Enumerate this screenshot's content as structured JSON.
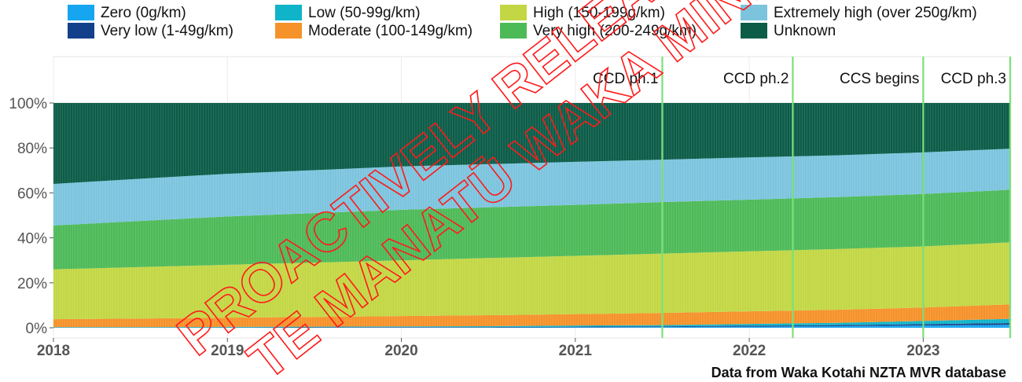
{
  "colors": {
    "zero": "#16a6f0",
    "very_low": "#12408a",
    "low": "#0fb4c8",
    "moderate": "#f5922a",
    "high": "#c3d744",
    "very_high": "#4dba58",
    "extremely_high": "#7cc4de",
    "unknown": "#0c5c48",
    "event_line": "#7be07a",
    "watermark": "#ff1a1a"
  },
  "legend": [
    {
      "key": "zero",
      "label": "Zero (0g/km)"
    },
    {
      "key": "very_low",
      "label": "Very low (1-49g/km)"
    },
    {
      "key": "low",
      "label": "Low (50-99g/km)"
    },
    {
      "key": "moderate",
      "label": "Moderate (100-149g/km)"
    },
    {
      "key": "high",
      "label": "High (150-199g/km)"
    },
    {
      "key": "very_high",
      "label": "Very high (200-249g/km)"
    },
    {
      "key": "extremely_high",
      "label": "Extremely high (over 250g/km)"
    },
    {
      "key": "unknown",
      "label": "Unknown"
    }
  ],
  "chart_data": {
    "type": "bar",
    "stacked": true,
    "title": "",
    "xlabel": "",
    "ylabel": "",
    "ylim": [
      0,
      100
    ],
    "yticks": [
      0,
      20,
      40,
      60,
      80,
      100
    ],
    "ytick_labels": [
      "0%",
      "20%",
      "40%",
      "60%",
      "80%",
      "100%"
    ],
    "xlim": [
      2018.0,
      2023.5
    ],
    "xticks": [
      2018,
      2019,
      2020,
      2021,
      2022,
      2023
    ],
    "xtick_labels": [
      "2018",
      "2019",
      "2020",
      "2021",
      "2022",
      "2023"
    ],
    "grid": true,
    "legend_position": "top",
    "x": [
      2018.0,
      2018.5,
      2019.0,
      2019.5,
      2020.0,
      2020.5,
      2021.0,
      2021.5,
      2022.0,
      2022.5,
      2023.0,
      2023.5
    ],
    "series": [
      {
        "key": "zero",
        "name": "Zero (0g/km)",
        "values": [
          0.0,
          0.0,
          0.0,
          0.0,
          0.1,
          0.1,
          0.2,
          0.3,
          0.5,
          0.7,
          1.0,
          1.3
        ]
      },
      {
        "key": "very_low",
        "name": "Very low (1-49g/km)",
        "values": [
          0.1,
          0.1,
          0.1,
          0.2,
          0.2,
          0.2,
          0.3,
          0.3,
          0.4,
          0.5,
          0.6,
          0.8
        ]
      },
      {
        "key": "low",
        "name": "Low (50-99g/km)",
        "values": [
          0.2,
          0.2,
          0.3,
          0.3,
          0.3,
          0.4,
          0.5,
          0.6,
          0.8,
          1.0,
          1.4,
          1.9
        ]
      },
      {
        "key": "moderate",
        "name": "Moderate (100-149g/km)",
        "values": [
          3.5,
          3.8,
          4.1,
          4.3,
          4.6,
          4.9,
          5.1,
          5.4,
          5.6,
          5.8,
          6.0,
          6.4
        ]
      },
      {
        "key": "high",
        "name": "High (150-199g/km)",
        "values": [
          22.2,
          22.9,
          23.5,
          24.2,
          24.8,
          25.4,
          25.9,
          26.4,
          26.7,
          27.0,
          27.2,
          27.6
        ]
      },
      {
        "key": "very_high",
        "name": "Very high (200-249g/km)",
        "values": [
          19.5,
          20.5,
          21.5,
          22.0,
          22.5,
          22.6,
          22.7,
          22.9,
          23.0,
          23.1,
          23.3,
          23.4
        ]
      },
      {
        "key": "extremely_high",
        "name": "Extremely high (over 250g/km)",
        "values": [
          18.5,
          18.8,
          19.0,
          19.1,
          19.3,
          19.2,
          19.1,
          18.9,
          18.8,
          18.6,
          18.5,
          18.3
        ]
      },
      {
        "key": "unknown",
        "name": "Unknown",
        "values": [
          36.0,
          33.7,
          31.5,
          29.9,
          28.2,
          27.2,
          26.2,
          25.2,
          24.2,
          23.3,
          22.0,
          20.3
        ]
      }
    ],
    "annotations": [
      {
        "x": 2021.5,
        "label": "CCD ph.1"
      },
      {
        "x": 2022.25,
        "label": "CCD ph.2"
      },
      {
        "x": 2023.0,
        "label": "CCS begins"
      },
      {
        "x": 2023.5,
        "label": "CCD ph.3"
      }
    ],
    "caption": "Data from Waka Kotahi NZTA MVR database"
  },
  "watermark": {
    "line1": "PROACTIVELY RELEASED BY",
    "line2": "TE MANATŪ WAKA MINISTRY OF"
  }
}
